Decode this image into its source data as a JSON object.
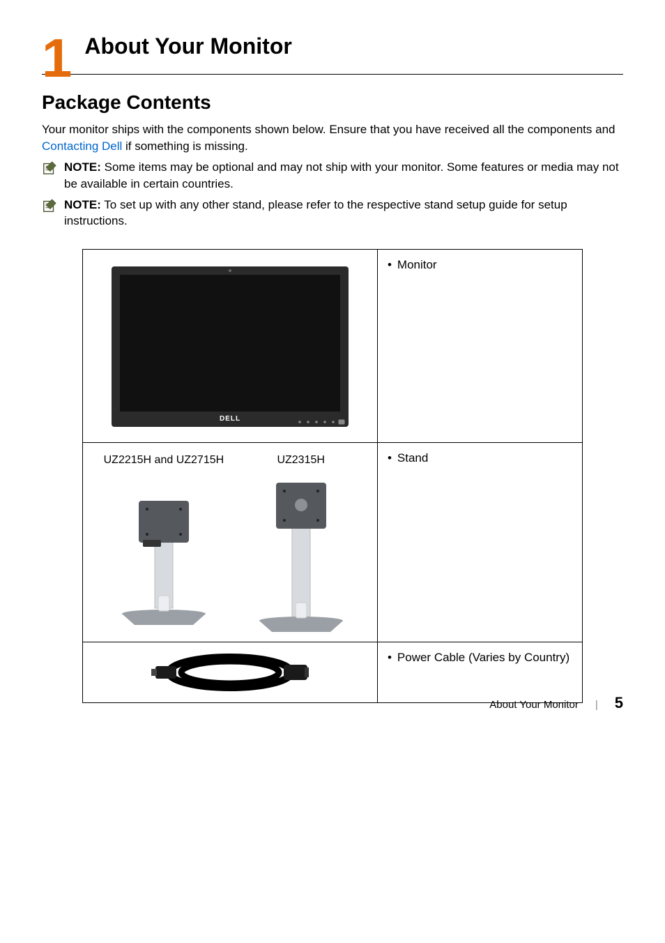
{
  "chapter": {
    "number": "1",
    "title": "About Your Monitor",
    "number_color": "#e46c0a"
  },
  "section": {
    "title": "Package Contents"
  },
  "intro": {
    "prefix": "Your monitor ships with the components shown below. Ensure that you have received all the components and ",
    "link": "Contacting Dell",
    "suffix": " if something is missing.",
    "link_color": "#0066cc"
  },
  "notes": [
    {
      "label": "NOTE:",
      "text": " Some items may be optional and may not ship with your monitor. Some features or media may not be available in certain countries."
    },
    {
      "label": "NOTE:",
      "text": " To set up with any other stand, please refer to the respective stand setup guide for setup instructions."
    }
  ],
  "table": {
    "rows": [
      {
        "desc_bullets": [
          "Monitor"
        ],
        "image": {
          "type": "monitor",
          "logo": "DELL",
          "body_color": "#2b2b2b",
          "screen_color": "#111111",
          "logo_color": "#ffffff"
        }
      },
      {
        "desc_bullets": [
          "Stand"
        ],
        "image": {
          "type": "stands",
          "labels": [
            "UZ2215H and UZ2715H",
            "UZ2315H"
          ],
          "base_color": "#9aa0a6",
          "column_color": "#d7dadf",
          "plate_color": "#55585c"
        }
      },
      {
        "desc_bullets": [
          "Power Cable (Varies by Country)"
        ],
        "image": {
          "type": "cable",
          "cable_color": "#000000",
          "plug_color": "#1a1a1a"
        }
      }
    ]
  },
  "footer": {
    "text": "About Your Monitor",
    "page": "5"
  },
  "icons": {
    "note_pencil_fill": "#5b6b3a",
    "note_paper_fill": "#ffffff",
    "note_stroke": "#4b5530"
  }
}
